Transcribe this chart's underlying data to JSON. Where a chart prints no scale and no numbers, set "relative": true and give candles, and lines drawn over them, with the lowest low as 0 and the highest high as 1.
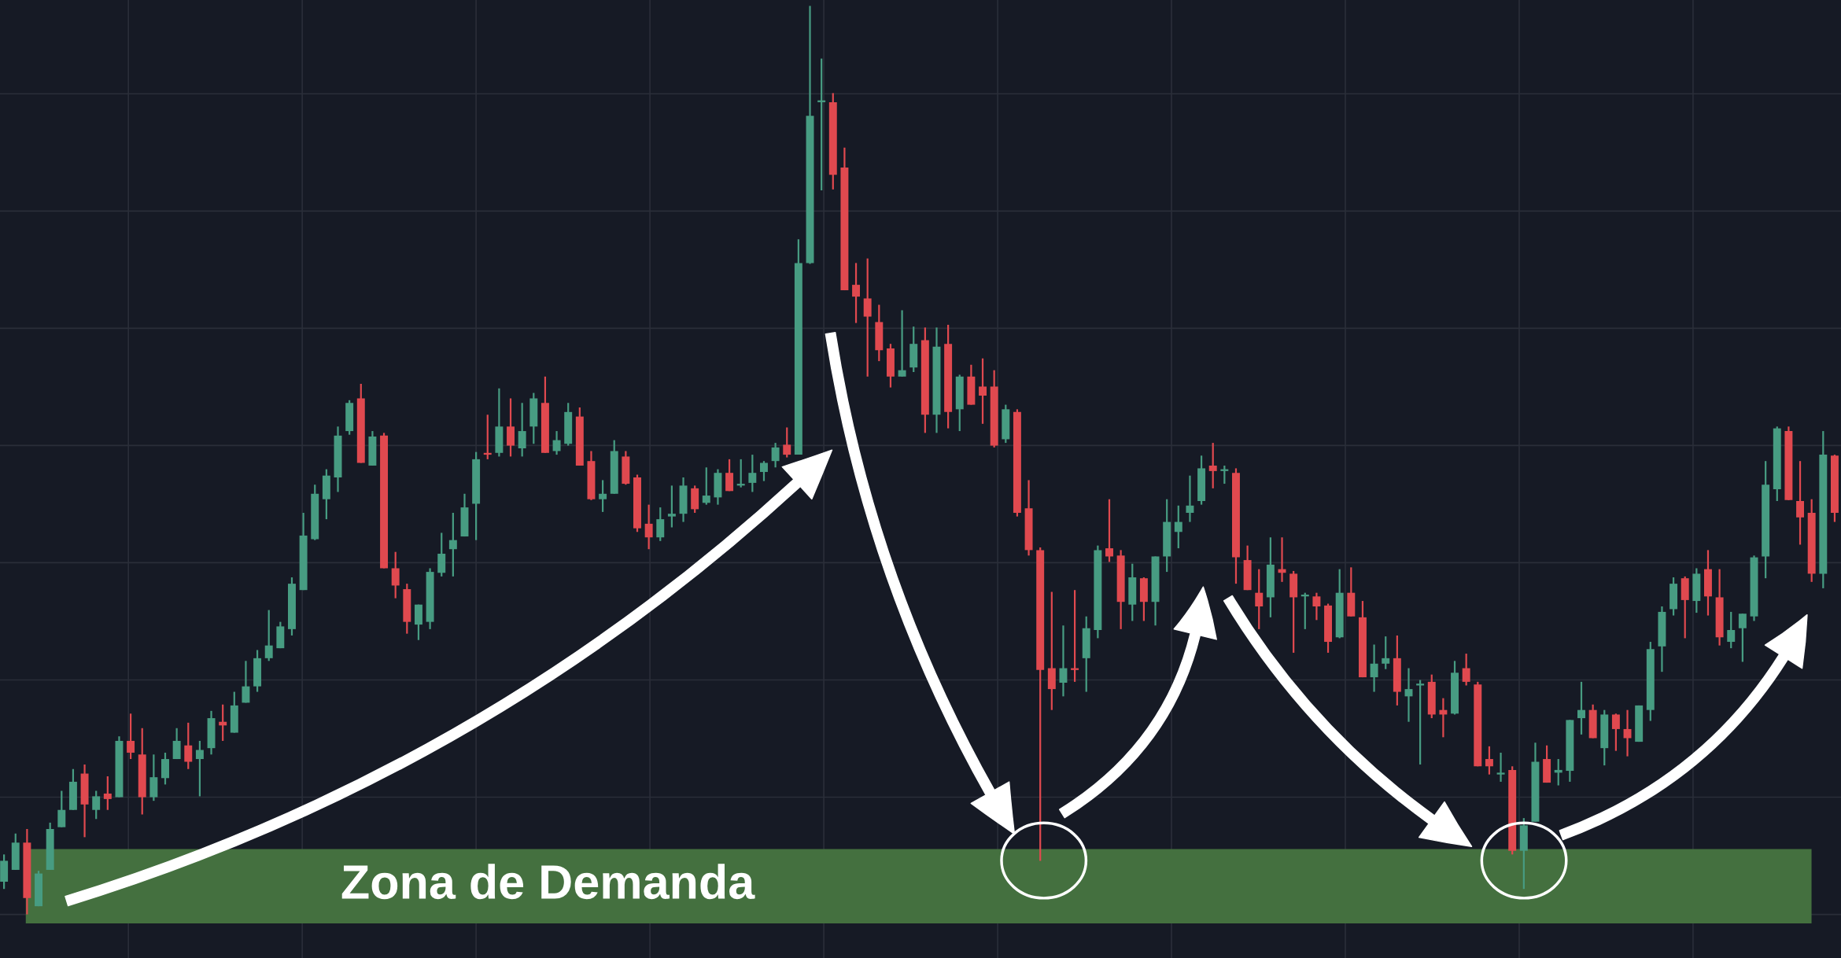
{
  "chart_data": {
    "type": "candlestick",
    "relative": true,
    "grid": true,
    "colors": [
      "#479c82",
      "#479c82",
      "#e0494f",
      "#479c82",
      "#479c82",
      "#479c82",
      "#479c82",
      "#e0494f",
      "#479c82",
      "#e0494f",
      "#479c82",
      "#e0494f",
      "#e0494f",
      "#479c82",
      "#479c82",
      "#479c82",
      "#e0494f",
      "#479c82",
      "#479c82",
      "#e0494f",
      "#479c82",
      "#479c82",
      "#479c82",
      "#479c82",
      "#479c82",
      "#479c82",
      "#479c82",
      "#479c82",
      "#479c82",
      "#479c82",
      "#479c82",
      "#e0494f",
      "#479c82",
      "#e0494f",
      "#e0494f",
      "#e0494f",
      "#479c82",
      "#479c82",
      "#479c82",
      "#479c82",
      "#479c82",
      "#479c82",
      "#e0494f",
      "#479c82",
      "#e0494f",
      "#479c82",
      "#479c82",
      "#e0494f",
      "#479c82",
      "#479c82",
      "#e0494f",
      "#e0494f",
      "#479c82",
      "#479c82",
      "#e0494f",
      "#e0494f",
      "#e0494f",
      "#479c82",
      "#479c82",
      "#479c82",
      "#e0494f",
      "#479c82",
      "#479c82",
      "#e0494f",
      "#479c82",
      "#479c82",
      "#479c82",
      "#479c82",
      "#e0494f",
      "#479c82",
      "#479c82",
      "#479c82",
      "#e0494f",
      "#e0494f",
      "#e0494f",
      "#e0494f",
      "#e0494f",
      "#e0494f",
      "#479c82",
      "#479c82",
      "#e0494f",
      "#479c82",
      "#e0494f",
      "#479c82",
      "#e0494f",
      "#e0494f",
      "#e0494f",
      "#479c82",
      "#e0494f",
      "#e0494f",
      "#e0494f",
      "#e0494f",
      "#479c82",
      "#e0494f",
      "#479c82",
      "#479c82",
      "#e0494f",
      "#e0494f",
      "#479c82",
      "#e0494f",
      "#479c82",
      "#479c82",
      "#479c82",
      "#479c82",
      "#479c82",
      "#e0494f",
      "#479c82",
      "#e0494f",
      "#e0494f",
      "#e0494f",
      "#479c82",
      "#e0494f",
      "#e0494f",
      "#479c82",
      "#e0494f",
      "#e0494f",
      "#479c82",
      "#e0494f",
      "#e0494f",
      "#479c82",
      "#479c82",
      "#e0494f",
      "#479c82",
      "#479c82",
      "#e0494f",
      "#e0494f",
      "#479c82",
      "#e0494f",
      "#e0494f",
      "#e0494f",
      "#479c82",
      "#e0494f",
      "#479c82",
      "#479c82",
      "#e0494f",
      "#479c82",
      "#479c82",
      "#479c82",
      "#e0494f",
      "#479c82",
      "#e0494f",
      "#e0494f",
      "#479c82",
      "#479c82",
      "#479c82",
      "#479c82",
      "#e0494f",
      "#479c82",
      "#e0494f",
      "#e0494f",
      "#479c82",
      "#479c82",
      "#479c82",
      "#479c82",
      "#479c82",
      "#e0494f",
      "#e0494f",
      "#e0494f",
      "#479c82",
      "#e0494f"
    ],
    "bands": [
      {
        "axis": "y",
        "from": -0.01,
        "to": 0.072,
        "label": "Zona de Demanda",
        "color": "#44703f"
      }
    ],
    "categories": [
      null,
      null,
      null,
      null,
      null,
      null,
      null,
      null,
      null,
      null,
      null,
      null,
      null,
      null,
      null,
      null,
      null,
      null,
      null,
      null,
      null,
      null,
      null,
      null,
      null,
      null,
      null,
      null,
      null,
      null,
      null,
      null,
      null,
      null,
      null,
      null,
      null,
      null,
      null,
      null,
      null,
      null,
      null,
      null,
      null,
      null,
      null,
      null,
      null,
      null,
      null,
      null,
      null,
      null,
      null,
      null,
      null,
      null,
      null,
      null,
      null,
      null,
      null,
      null,
      null,
      null,
      null,
      null,
      null,
      null,
      null,
      null,
      null,
      null,
      null,
      null,
      null,
      null,
      null,
      null,
      null,
      null,
      null,
      null,
      null,
      null,
      null,
      null,
      null,
      null,
      null,
      null,
      null,
      null,
      null,
      null,
      null,
      null,
      null,
      null,
      null,
      null,
      null,
      null,
      null,
      null,
      null,
      null,
      null,
      null,
      null,
      null,
      null,
      null,
      null,
      null,
      null,
      null,
      null,
      null,
      null,
      null,
      null,
      null,
      null,
      null,
      null,
      null,
      null,
      null,
      null,
      null,
      null,
      null,
      null,
      null,
      null,
      null,
      null,
      null,
      null,
      null,
      null,
      null,
      null,
      null,
      null,
      null,
      null,
      null,
      null,
      null,
      null,
      null,
      null,
      null,
      null,
      null,
      null,
      null
    ],
    "ohlc": [
      [
        0.036,
        0.066,
        0.028,
        0.059
      ],
      [
        0.049,
        0.089,
        0.049,
        0.079
      ],
      [
        0.079,
        0.094,
        0,
        0.018
      ],
      [
        0.009,
        0.048,
        0.009,
        0.045
      ],
      [
        0.049,
        0.101,
        0.049,
        0.094
      ],
      [
        0.096,
        0.136,
        0.096,
        0.115
      ],
      [
        0.115,
        0.16,
        0.115,
        0.146
      ],
      [
        0.155,
        0.165,
        0.085,
        0.121
      ],
      [
        0.115,
        0.136,
        0.105,
        0.13
      ],
      [
        0.133,
        0.152,
        0.115,
        0.127
      ],
      [
        0.129,
        0.196,
        0.129,
        0.191
      ],
      [
        0.191,
        0.221,
        0.171,
        0.178
      ],
      [
        0.176,
        0.205,
        0.11,
        0.129
      ],
      [
        0.129,
        0.176,
        0.125,
        0.151
      ],
      [
        0.15,
        0.178,
        0.143,
        0.171
      ],
      [
        0.171,
        0.205,
        0.171,
        0.191
      ],
      [
        0.186,
        0.211,
        0.16,
        0.168
      ],
      [
        0.171,
        0.191,
        0.13,
        0.181
      ],
      [
        0.183,
        0.224,
        0.176,
        0.216
      ],
      [
        0.212,
        0.231,
        0.191,
        0.208
      ],
      [
        0.2,
        0.245,
        0.2,
        0.23
      ],
      [
        0.233,
        0.279,
        0.233,
        0.251
      ],
      [
        0.251,
        0.291,
        0.245,
        0.282
      ],
      [
        0.282,
        0.335,
        0.279,
        0.296
      ],
      [
        0.293,
        0.322,
        0.293,
        0.317
      ],
      [
        0.314,
        0.371,
        0.307,
        0.364
      ],
      [
        0.357,
        0.442,
        0.357,
        0.417
      ],
      [
        0.413,
        0.473,
        0.412,
        0.463
      ],
      [
        0.457,
        0.49,
        0.435,
        0.483
      ],
      [
        0.481,
        0.537,
        0.465,
        0.527
      ],
      [
        0.532,
        0.566,
        0.528,
        0.563
      ],
      [
        0.568,
        0.584,
        0.497,
        0.497
      ],
      [
        0.494,
        0.532,
        0.494,
        0.526
      ],
      [
        0.527,
        0.53,
        0.381,
        0.381
      ],
      [
        0.381,
        0.399,
        0.348,
        0.362
      ],
      [
        0.358,
        0.364,
        0.309,
        0.322
      ],
      [
        0.319,
        0.341,
        0.302,
        0.341
      ],
      [
        0.322,
        0.381,
        0.314,
        0.377
      ],
      [
        0.376,
        0.42,
        0.372,
        0.397
      ],
      [
        0.402,
        0.442,
        0.372,
        0.412
      ],
      [
        0.416,
        0.463,
        0.416,
        0.448
      ],
      [
        0.452,
        0.509,
        0.412,
        0.501
      ],
      [
        0.508,
        0.55,
        0.501,
        0.506
      ],
      [
        0.508,
        0.579,
        0.504,
        0.537
      ],
      [
        0.537,
        0.568,
        0.504,
        0.516
      ],
      [
        0.513,
        0.563,
        0.504,
        0.532
      ],
      [
        0.537,
        0.574,
        0.518,
        0.568
      ],
      [
        0.563,
        0.592,
        0.508,
        0.508
      ],
      [
        0.51,
        0.532,
        0.506,
        0.522
      ],
      [
        0.518,
        0.563,
        0.516,
        0.553
      ],
      [
        0.548,
        0.558,
        0.494,
        0.494
      ],
      [
        0.499,
        0.51,
        0.456,
        0.457
      ],
      [
        0.457,
        0.478,
        0.443,
        0.463
      ],
      [
        0.463,
        0.522,
        0.463,
        0.51
      ],
      [
        0.504,
        0.51,
        0.473,
        0.474
      ],
      [
        0.481,
        0.484,
        0.421,
        0.425
      ],
      [
        0.43,
        0.451,
        0.402,
        0.415
      ],
      [
        0.415,
        0.448,
        0.411,
        0.435
      ],
      [
        0.438,
        0.472,
        0.426,
        0.441
      ],
      [
        0.441,
        0.481,
        0.432,
        0.472
      ],
      [
        0.469,
        0.472,
        0.442,
        0.446
      ],
      [
        0.453,
        0.492,
        0.451,
        0.461
      ],
      [
        0.459,
        0.49,
        0.451,
        0.486
      ],
      [
        0.486,
        0.501,
        0.466,
        0.466
      ],
      [
        0.472,
        0.501,
        0.47,
        0.473
      ],
      [
        0.475,
        0.506,
        0.465,
        0.486
      ],
      [
        0.487,
        0.499,
        0.477,
        0.497
      ],
      [
        0.499,
        0.519,
        0.492,
        0.514
      ],
      [
        0.517,
        0.536,
        0.503,
        0.506
      ],
      [
        0.506,
        0.743,
        0.506,
        0.717
      ],
      [
        0.717,
        1,
        0.716,
        0.879
      ],
      [
        0.894,
        0.942,
        0.797,
        0.895
      ],
      [
        0.894,
        0.904,
        0.798,
        0.814
      ],
      [
        0.822,
        0.844,
        0.687,
        0.687
      ],
      [
        0.693,
        0.717,
        0.651,
        0.68
      ],
      [
        0.678,
        0.722,
        0.592,
        0.658
      ],
      [
        0.652,
        0.671,
        0.609,
        0.621
      ],
      [
        0.623,
        0.628,
        0.58,
        0.592
      ],
      [
        0.592,
        0.665,
        0.592,
        0.599
      ],
      [
        0.602,
        0.647,
        0.597,
        0.628
      ],
      [
        0.632,
        0.646,
        0.53,
        0.55
      ],
      [
        0.55,
        0.646,
        0.53,
        0.625
      ],
      [
        0.628,
        0.649,
        0.535,
        0.553
      ],
      [
        0.556,
        0.594,
        0.532,
        0.592
      ],
      [
        0.592,
        0.605,
        0.561,
        0.561
      ],
      [
        0.581,
        0.612,
        0.54,
        0.571
      ],
      [
        0.581,
        0.599,
        0.514,
        0.516
      ],
      [
        0.523,
        0.561,
        0.519,
        0.556
      ],
      [
        0.553,
        0.556,
        0.438,
        0.442
      ],
      [
        0.447,
        0.478,
        0.395,
        0.401
      ],
      [
        0.401,
        0.404,
        0.059,
        0.269
      ],
      [
        0.271,
        0.355,
        0.225,
        0.248
      ],
      [
        0.255,
        0.318,
        0.24,
        0.271
      ],
      [
        0.271,
        0.357,
        0.256,
        0.269
      ],
      [
        0.282,
        0.328,
        0.245,
        0.315
      ],
      [
        0.313,
        0.406,
        0.304,
        0.401
      ],
      [
        0.403,
        0.457,
        0.388,
        0.394
      ],
      [
        0.395,
        0.401,
        0.314,
        0.344
      ],
      [
        0.341,
        0.386,
        0.323,
        0.371
      ],
      [
        0.37,
        0.371,
        0.323,
        0.344
      ],
      [
        0.344,
        0.394,
        0.318,
        0.394
      ],
      [
        0.394,
        0.457,
        0.377,
        0.432
      ],
      [
        0.421,
        0.45,
        0.403,
        0.432
      ],
      [
        0.442,
        0.483,
        0.432,
        0.45
      ],
      [
        0.455,
        0.505,
        0.451,
        0.491
      ],
      [
        0.494,
        0.519,
        0.469,
        0.488
      ],
      [
        0.488,
        0.494,
        0.474,
        0.49
      ],
      [
        0.486,
        0.491,
        0.364,
        0.393
      ],
      [
        0.39,
        0.406,
        0.357,
        0.357
      ],
      [
        0.354,
        0.38,
        0.314,
        0.339
      ],
      [
        0.349,
        0.415,
        0.327,
        0.385
      ],
      [
        0.38,
        0.415,
        0.366,
        0.376
      ],
      [
        0.375,
        0.378,
        0.288,
        0.349
      ],
      [
        0.35,
        0.354,
        0.314,
        0.351
      ],
      [
        0.35,
        0.354,
        0.324,
        0.339
      ],
      [
        0.34,
        0.342,
        0.288,
        0.3
      ],
      [
        0.305,
        0.38,
        0.304,
        0.354
      ],
      [
        0.354,
        0.382,
        0.328,
        0.328
      ],
      [
        0.327,
        0.345,
        0.261,
        0.261
      ],
      [
        0.261,
        0.297,
        0.245,
        0.276
      ],
      [
        0.276,
        0.306,
        0.27,
        0.282
      ],
      [
        0.282,
        0.307,
        0.23,
        0.245
      ],
      [
        0.24,
        0.271,
        0.212,
        0.248
      ],
      [
        0.252,
        0.258,
        0.165,
        0.253
      ],
      [
        0.256,
        0.264,
        0.216,
        0.22
      ],
      [
        0.225,
        0.238,
        0.195,
        0.22
      ],
      [
        0.221,
        0.279,
        0.22,
        0.266
      ],
      [
        0.271,
        0.287,
        0.252,
        0.256
      ],
      [
        0.253,
        0.256,
        0.163,
        0.163
      ],
      [
        0.171,
        0.185,
        0.154,
        0.163
      ],
      [
        0.154,
        0.178,
        0.146,
        0.155
      ],
      [
        0.159,
        0.163,
        0.066,
        0.07
      ],
      [
        0.07,
        0.106,
        0.028,
        0.098
      ],
      [
        0.102,
        0.189,
        0.102,
        0.168
      ],
      [
        0.171,
        0.186,
        0.145,
        0.145
      ],
      [
        0.156,
        0.171,
        0.142,
        0.159
      ],
      [
        0.158,
        0.214,
        0.146,
        0.214
      ],
      [
        0.216,
        0.256,
        0.198,
        0.225
      ],
      [
        0.225,
        0.231,
        0.194,
        0.194
      ],
      [
        0.183,
        0.225,
        0.164,
        0.22
      ],
      [
        0.22,
        0.221,
        0.18,
        0.204
      ],
      [
        0.204,
        0.225,
        0.174,
        0.194
      ],
      [
        0.19,
        0.23,
        0.19,
        0.23
      ],
      [
        0.225,
        0.3,
        0.213,
        0.292
      ],
      [
        0.295,
        0.339,
        0.267,
        0.333
      ],
      [
        0.336,
        0.371,
        0.329,
        0.364
      ],
      [
        0.37,
        0.372,
        0.304,
        0.346
      ],
      [
        0.345,
        0.381,
        0.332,
        0.375
      ],
      [
        0.38,
        0.401,
        0.329,
        0.35
      ],
      [
        0.349,
        0.38,
        0.296,
        0.305
      ],
      [
        0.3,
        0.333,
        0.293,
        0.313
      ],
      [
        0.315,
        0.331,
        0.278,
        0.331
      ],
      [
        0.328,
        0.395,
        0.323,
        0.393
      ],
      [
        0.394,
        0.499,
        0.37,
        0.473
      ],
      [
        0.468,
        0.537,
        0.455,
        0.535
      ],
      [
        0.532,
        0.537,
        0.456,
        0.456
      ],
      [
        0.455,
        0.499,
        0.407,
        0.437
      ],
      [
        0.442,
        0.457,
        0.366,
        0.375
      ],
      [
        0.375,
        0.532,
        0.359,
        0.506
      ],
      [
        0.505,
        0.506,
        0.432,
        0.442
      ]
    ]
  }
}
